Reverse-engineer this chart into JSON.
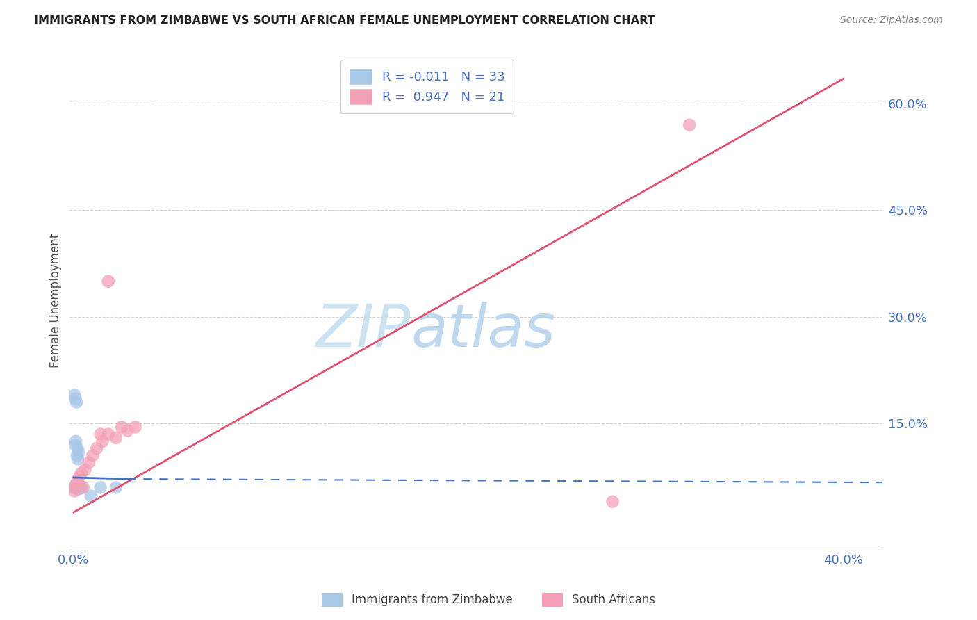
{
  "title": "IMMIGRANTS FROM ZIMBABWE VS SOUTH AFRICAN FEMALE UNEMPLOYMENT CORRELATION CHART",
  "source": "Source: ZipAtlas.com",
  "ylabel": "Female Unemployment",
  "y_tick_labels": [
    "15.0%",
    "30.0%",
    "45.0%",
    "60.0%"
  ],
  "y_tick_values": [
    0.15,
    0.3,
    0.45,
    0.6
  ],
  "xlim": [
    -0.002,
    0.42
  ],
  "ylim": [
    -0.025,
    0.67
  ],
  "tick_color": "#4472c4",
  "grid_color": "#d0d0d0",
  "watermark_zip": "ZIP",
  "watermark_atlas": "atlas",
  "series1_color": "#a8c8e8",
  "series2_color": "#f4a0b8",
  "line1_color": "#4472c4",
  "line2_color": "#e05070",
  "legend_label1": "Immigrants from Zimbabwe",
  "legend_label2": "South Africans",
  "legend_r1": "R = -0.011",
  "legend_n1": "N = 33",
  "legend_r2": "R =  0.947",
  "legend_n2": "N = 21",
  "zim_x": [
    0.0005,
    0.001,
    0.0015,
    0.002,
    0.0025,
    0.003,
    0.0035,
    0.004,
    0.0008,
    0.0012,
    0.0018,
    0.0022,
    0.0005,
    0.001,
    0.0015,
    0.002,
    0.0025,
    0.0008,
    0.0012,
    0.0018,
    0.0022,
    0.0005,
    0.001,
    0.0015,
    0.0005,
    0.001,
    0.0015,
    0.002,
    0.0025,
    0.003,
    0.014,
    0.022,
    0.009
  ],
  "zim_y": [
    0.06,
    0.063,
    0.058,
    0.062,
    0.06,
    0.058,
    0.062,
    0.06,
    0.06,
    0.06,
    0.06,
    0.06,
    0.19,
    0.185,
    0.18,
    0.115,
    0.11,
    0.12,
    0.125,
    0.105,
    0.1,
    0.06,
    0.06,
    0.06,
    0.06,
    0.06,
    0.06,
    0.06,
    0.06,
    0.06,
    0.06,
    0.06,
    0.048
  ],
  "sa_x": [
    0.0005,
    0.001,
    0.0015,
    0.002,
    0.003,
    0.004,
    0.005,
    0.006,
    0.008,
    0.01,
    0.012,
    0.015,
    0.018,
    0.022,
    0.025,
    0.028,
    0.032,
    0.014,
    0.018,
    0.32,
    0.28
  ],
  "sa_y": [
    0.055,
    0.06,
    0.065,
    0.07,
    0.075,
    0.08,
    0.06,
    0.085,
    0.095,
    0.105,
    0.115,
    0.125,
    0.135,
    0.13,
    0.145,
    0.14,
    0.145,
    0.135,
    0.35,
    0.57,
    0.04
  ],
  "line_sa_x0": 0.0,
  "line_sa_y0": 0.025,
  "line_sa_x1": 0.4,
  "line_sa_y1": 0.635,
  "line_zim_solid_x0": 0.0,
  "line_zim_solid_y0": 0.074,
  "line_zim_solid_x1": 0.028,
  "line_zim_solid_y1": 0.072,
  "line_zim_dash_x0": 0.028,
  "line_zim_dash_y0": 0.072,
  "line_zim_dash_x1": 0.42,
  "line_zim_dash_y1": 0.067
}
